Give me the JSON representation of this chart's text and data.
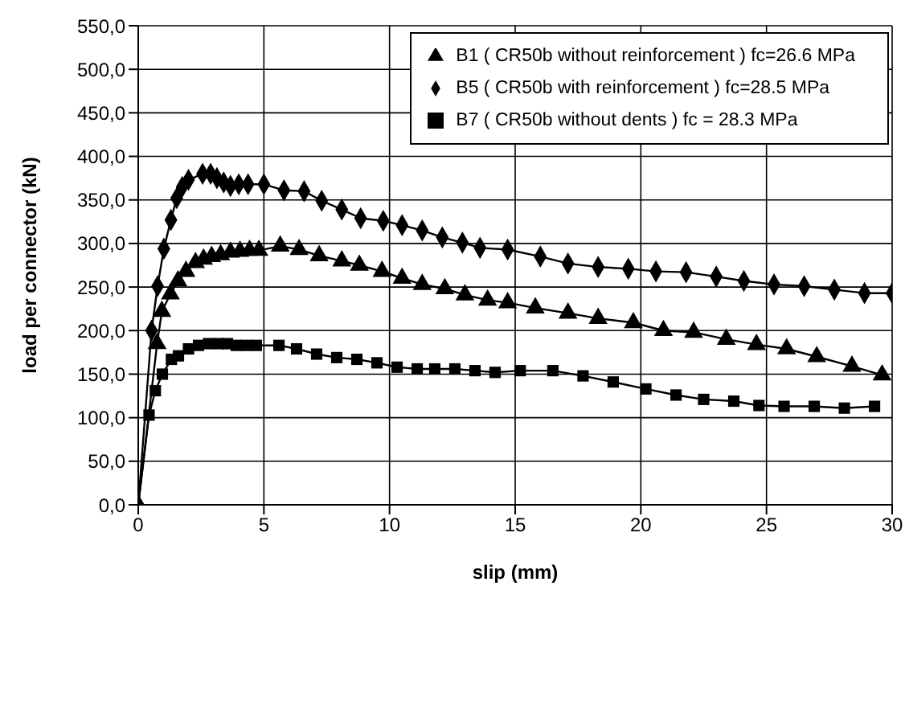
{
  "chart_data": {
    "type": "line",
    "xlabel": "slip (mm)",
    "ylabel": "load per connector (kN)",
    "xlim": [
      0,
      30
    ],
    "xticks": [
      0,
      5,
      10,
      15,
      20,
      25,
      30
    ],
    "ylim": [
      0,
      550
    ],
    "yticks": [
      {
        "value": 0,
        "label": "0,0"
      },
      {
        "value": 50,
        "label": "50,0"
      },
      {
        "value": 100,
        "label": "100,0"
      },
      {
        "value": 150,
        "label": "150,0"
      },
      {
        "value": 200,
        "label": "200,0"
      },
      {
        "value": 250,
        "label": "250,0"
      },
      {
        "value": 300,
        "label": "300,0"
      },
      {
        "value": 350,
        "label": "350,0"
      },
      {
        "value": 400,
        "label": "400,0"
      },
      {
        "value": 450,
        "label": "450,0"
      },
      {
        "value": 500,
        "label": "500,0"
      },
      {
        "value": 550,
        "label": "550,0"
      }
    ],
    "grid": true,
    "legend": "top right",
    "line_style": "solid",
    "series": [
      {
        "name": "B1 ( CR50b without reinforcement ) fc=26.6 MPa",
        "color": "#000000",
        "marker": "triangle",
        "x": [
          0,
          0.75,
          0.94,
          1.28,
          1.58,
          1.9,
          2.28,
          2.6,
          2.92,
          3.28,
          3.67,
          4.05,
          4.43,
          4.8,
          5.65,
          6.4,
          7.2,
          8.1,
          8.8,
          9.7,
          10.5,
          11.3,
          12.2,
          13.0,
          13.9,
          14.7,
          15.8,
          17.1,
          18.3,
          19.7,
          20.9,
          22.1,
          23.4,
          24.6,
          25.8,
          27.0,
          28.4,
          29.6
        ],
        "values": [
          0,
          185,
          222,
          242,
          257,
          268,
          278,
          282,
          285,
          287,
          290,
          291,
          292,
          292,
          297,
          293,
          286,
          280,
          275,
          268,
          260,
          253,
          248,
          241,
          235,
          232,
          226,
          220,
          214,
          209,
          200,
          198,
          190,
          184,
          179,
          170,
          159,
          149
        ]
      },
      {
        "name": "B5 ( CR50b with reinforcement ) fc=28.5 MPa",
        "color": "#000000",
        "marker": "diamond",
        "x": [
          0,
          0.53,
          0.77,
          1.02,
          1.3,
          1.53,
          1.75,
          2.0,
          2.56,
          2.88,
          3.13,
          3.4,
          3.67,
          4.0,
          4.37,
          5.0,
          5.8,
          6.6,
          7.3,
          8.1,
          8.85,
          9.75,
          10.5,
          11.3,
          12.1,
          12.9,
          13.6,
          14.7,
          16.0,
          17.1,
          18.3,
          19.5,
          20.6,
          21.8,
          23.0,
          24.1,
          25.3,
          26.5,
          27.7,
          28.9,
          30.0
        ],
        "values": [
          0,
          200,
          251,
          294,
          327,
          352,
          365,
          373,
          380,
          380,
          375,
          370,
          366,
          368,
          368,
          368,
          361,
          360,
          349,
          339,
          329,
          326,
          321,
          315,
          307,
          301,
          295,
          293,
          285,
          277,
          273,
          271,
          268,
          267,
          262,
          257,
          253,
          251,
          247,
          243,
          243
        ]
      },
      {
        "name": "B7 ( CR50b without dents ) fc = 28.3 MPa",
        "color": "#000000",
        "marker": "square",
        "x": [
          0,
          0.43,
          0.68,
          0.96,
          1.32,
          1.6,
          2.0,
          2.4,
          2.8,
          3.2,
          3.55,
          3.9,
          4.3,
          4.7,
          5.6,
          6.3,
          7.1,
          7.9,
          8.7,
          9.5,
          10.3,
          11.1,
          11.8,
          12.6,
          13.4,
          14.2,
          15.2,
          16.5,
          17.7,
          18.9,
          20.2,
          21.4,
          22.5,
          23.7,
          24.7,
          25.7,
          26.9,
          28.1,
          29.3
        ],
        "values": [
          0,
          103,
          131,
          150,
          167,
          171,
          179,
          183,
          185,
          185,
          185,
          183,
          183,
          183,
          183,
          179,
          173,
          169,
          167,
          163,
          158,
          156,
          156,
          156,
          154,
          152,
          154,
          154,
          148,
          141,
          133,
          126,
          121,
          119,
          114,
          113,
          113,
          111,
          113
        ]
      }
    ]
  }
}
